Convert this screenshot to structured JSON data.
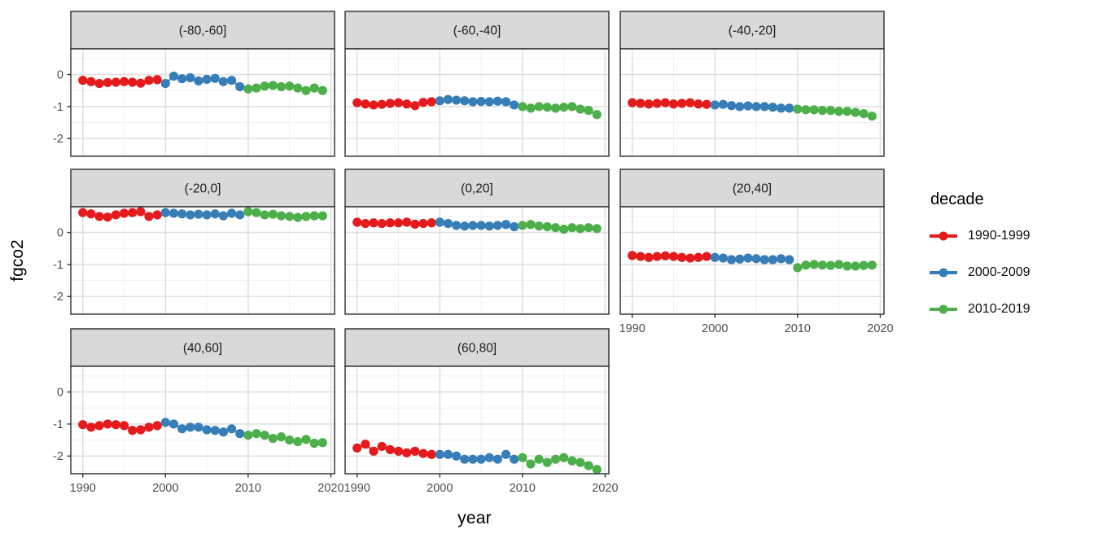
{
  "chart_data": {
    "type": "scatter",
    "title": "",
    "xlabel": "year",
    "ylabel": "fgco2",
    "legend_title": "decade",
    "legend_position": "right",
    "grid": true,
    "xlim": [
      1988.55,
      2020.45
    ],
    "ylim": [
      -2.553,
      0.803
    ],
    "x_ticks": [
      1990,
      2000,
      2010,
      2020
    ],
    "x_tick_labels": [
      "1990",
      "2000",
      "2010",
      "2020"
    ],
    "x_minor_ticks": [
      1995,
      2005,
      2015
    ],
    "y_ticks": [
      0,
      -1,
      -2
    ],
    "y_tick_labels": [
      "0",
      "-1",
      "-2"
    ],
    "y_minor_ticks": [
      0.5,
      -0.5,
      -1.5,
      -2.5
    ],
    "years": [
      1990,
      1991,
      1992,
      1993,
      1994,
      1995,
      1996,
      1997,
      1998,
      1999,
      2000,
      2001,
      2002,
      2003,
      2004,
      2005,
      2006,
      2007,
      2008,
      2009,
      2010,
      2011,
      2012,
      2013,
      2014,
      2015,
      2016,
      2017,
      2018,
      2019
    ],
    "decades": [
      {
        "name": "1990-1999",
        "color": "#E41A1C",
        "start": 1990,
        "end": 1999
      },
      {
        "name": "2000-2009",
        "color": "#377EB8",
        "start": 2000,
        "end": 2009
      },
      {
        "name": "2010-2019",
        "color": "#4DAF4A",
        "start": 2010,
        "end": 2019
      }
    ],
    "facets": [
      {
        "label": "(-80,-60]",
        "values": [
          -0.18,
          -0.22,
          -0.28,
          -0.25,
          -0.24,
          -0.22,
          -0.24,
          -0.27,
          -0.18,
          -0.16,
          -0.28,
          -0.05,
          -0.13,
          -0.1,
          -0.2,
          -0.15,
          -0.12,
          -0.22,
          -0.18,
          -0.38,
          -0.45,
          -0.42,
          -0.36,
          -0.34,
          -0.38,
          -0.36,
          -0.42,
          -0.5,
          -0.42,
          -0.5
        ]
      },
      {
        "label": "(-60,-40]",
        "values": [
          -0.88,
          -0.92,
          -0.95,
          -0.93,
          -0.9,
          -0.88,
          -0.92,
          -0.97,
          -0.87,
          -0.85,
          -0.82,
          -0.78,
          -0.8,
          -0.82,
          -0.85,
          -0.84,
          -0.85,
          -0.83,
          -0.85,
          -0.95,
          -1.0,
          -1.05,
          -1.0,
          -1.02,
          -1.05,
          -1.02,
          -1.0,
          -1.08,
          -1.12,
          -1.25
        ]
      },
      {
        "label": "(-40,-20]",
        "values": [
          -0.88,
          -0.9,
          -0.92,
          -0.9,
          -0.88,
          -0.92,
          -0.9,
          -0.88,
          -0.92,
          -0.93,
          -0.95,
          -0.93,
          -0.97,
          -1.0,
          -0.98,
          -1.0,
          -1.0,
          -1.02,
          -1.05,
          -1.05,
          -1.08,
          -1.1,
          -1.1,
          -1.12,
          -1.12,
          -1.15,
          -1.15,
          -1.18,
          -1.22,
          -1.3
        ]
      },
      {
        "label": "(-20,0]",
        "values": [
          0.62,
          0.58,
          0.5,
          0.48,
          0.55,
          0.6,
          0.62,
          0.65,
          0.5,
          0.55,
          0.62,
          0.6,
          0.58,
          0.55,
          0.57,
          0.55,
          0.58,
          0.52,
          0.6,
          0.55,
          0.65,
          0.62,
          0.55,
          0.57,
          0.52,
          0.5,
          0.47,
          0.5,
          0.52,
          0.52
        ]
      },
      {
        "label": "(0,20]",
        "values": [
          0.32,
          0.28,
          0.3,
          0.28,
          0.3,
          0.3,
          0.32,
          0.26,
          0.28,
          0.3,
          0.32,
          0.28,
          0.22,
          0.2,
          0.22,
          0.22,
          0.2,
          0.22,
          0.25,
          0.18,
          0.22,
          0.25,
          0.2,
          0.18,
          0.15,
          0.1,
          0.15,
          0.12,
          0.15,
          0.12
        ]
      },
      {
        "label": "(20,40]",
        "values": [
          -0.72,
          -0.75,
          -0.78,
          -0.75,
          -0.73,
          -0.75,
          -0.78,
          -0.8,
          -0.78,
          -0.75,
          -0.78,
          -0.8,
          -0.85,
          -0.83,
          -0.8,
          -0.82,
          -0.85,
          -0.85,
          -0.82,
          -0.85,
          -1.1,
          -1.02,
          -1.0,
          -1.02,
          -1.03,
          -1.0,
          -1.05,
          -1.05,
          -1.03,
          -1.02
        ]
      },
      {
        "label": "(40,60]",
        "values": [
          -1.02,
          -1.1,
          -1.05,
          -1.0,
          -1.02,
          -1.05,
          -1.2,
          -1.18,
          -1.1,
          -1.05,
          -0.95,
          -1.0,
          -1.15,
          -1.1,
          -1.1,
          -1.18,
          -1.2,
          -1.25,
          -1.15,
          -1.3,
          -1.35,
          -1.3,
          -1.35,
          -1.45,
          -1.4,
          -1.5,
          -1.55,
          -1.48,
          -1.6,
          -1.58
        ]
      },
      {
        "label": "(60,80]",
        "values": [
          -1.75,
          -1.63,
          -1.85,
          -1.7,
          -1.8,
          -1.85,
          -1.9,
          -1.85,
          -1.92,
          -1.95,
          -1.95,
          -1.95,
          -2.0,
          -2.1,
          -2.1,
          -2.1,
          -2.05,
          -2.1,
          -1.95,
          -2.1,
          -2.05,
          -2.25,
          -2.1,
          -2.2,
          -2.1,
          -2.05,
          -2.15,
          -2.2,
          -2.3,
          -2.42
        ]
      }
    ]
  },
  "legend": {
    "title": "decade",
    "entries": [
      {
        "label": "1990-1999",
        "color": "#E41A1C"
      },
      {
        "label": "2000-2009",
        "color": "#377EB8"
      },
      {
        "label": "2010-2019",
        "color": "#4DAF4A"
      }
    ]
  },
  "colors": {
    "strip_fill": "#D9D9D9",
    "strip_border": "#2b2b2b",
    "panel_border": "#2b2b2b",
    "grid_major": "#e0e0e0",
    "grid_minor": "#f0f0f0",
    "tick_mark": "#333333",
    "tick_text": "#4d4d4d",
    "strip_text": "#1a1a1a"
  }
}
